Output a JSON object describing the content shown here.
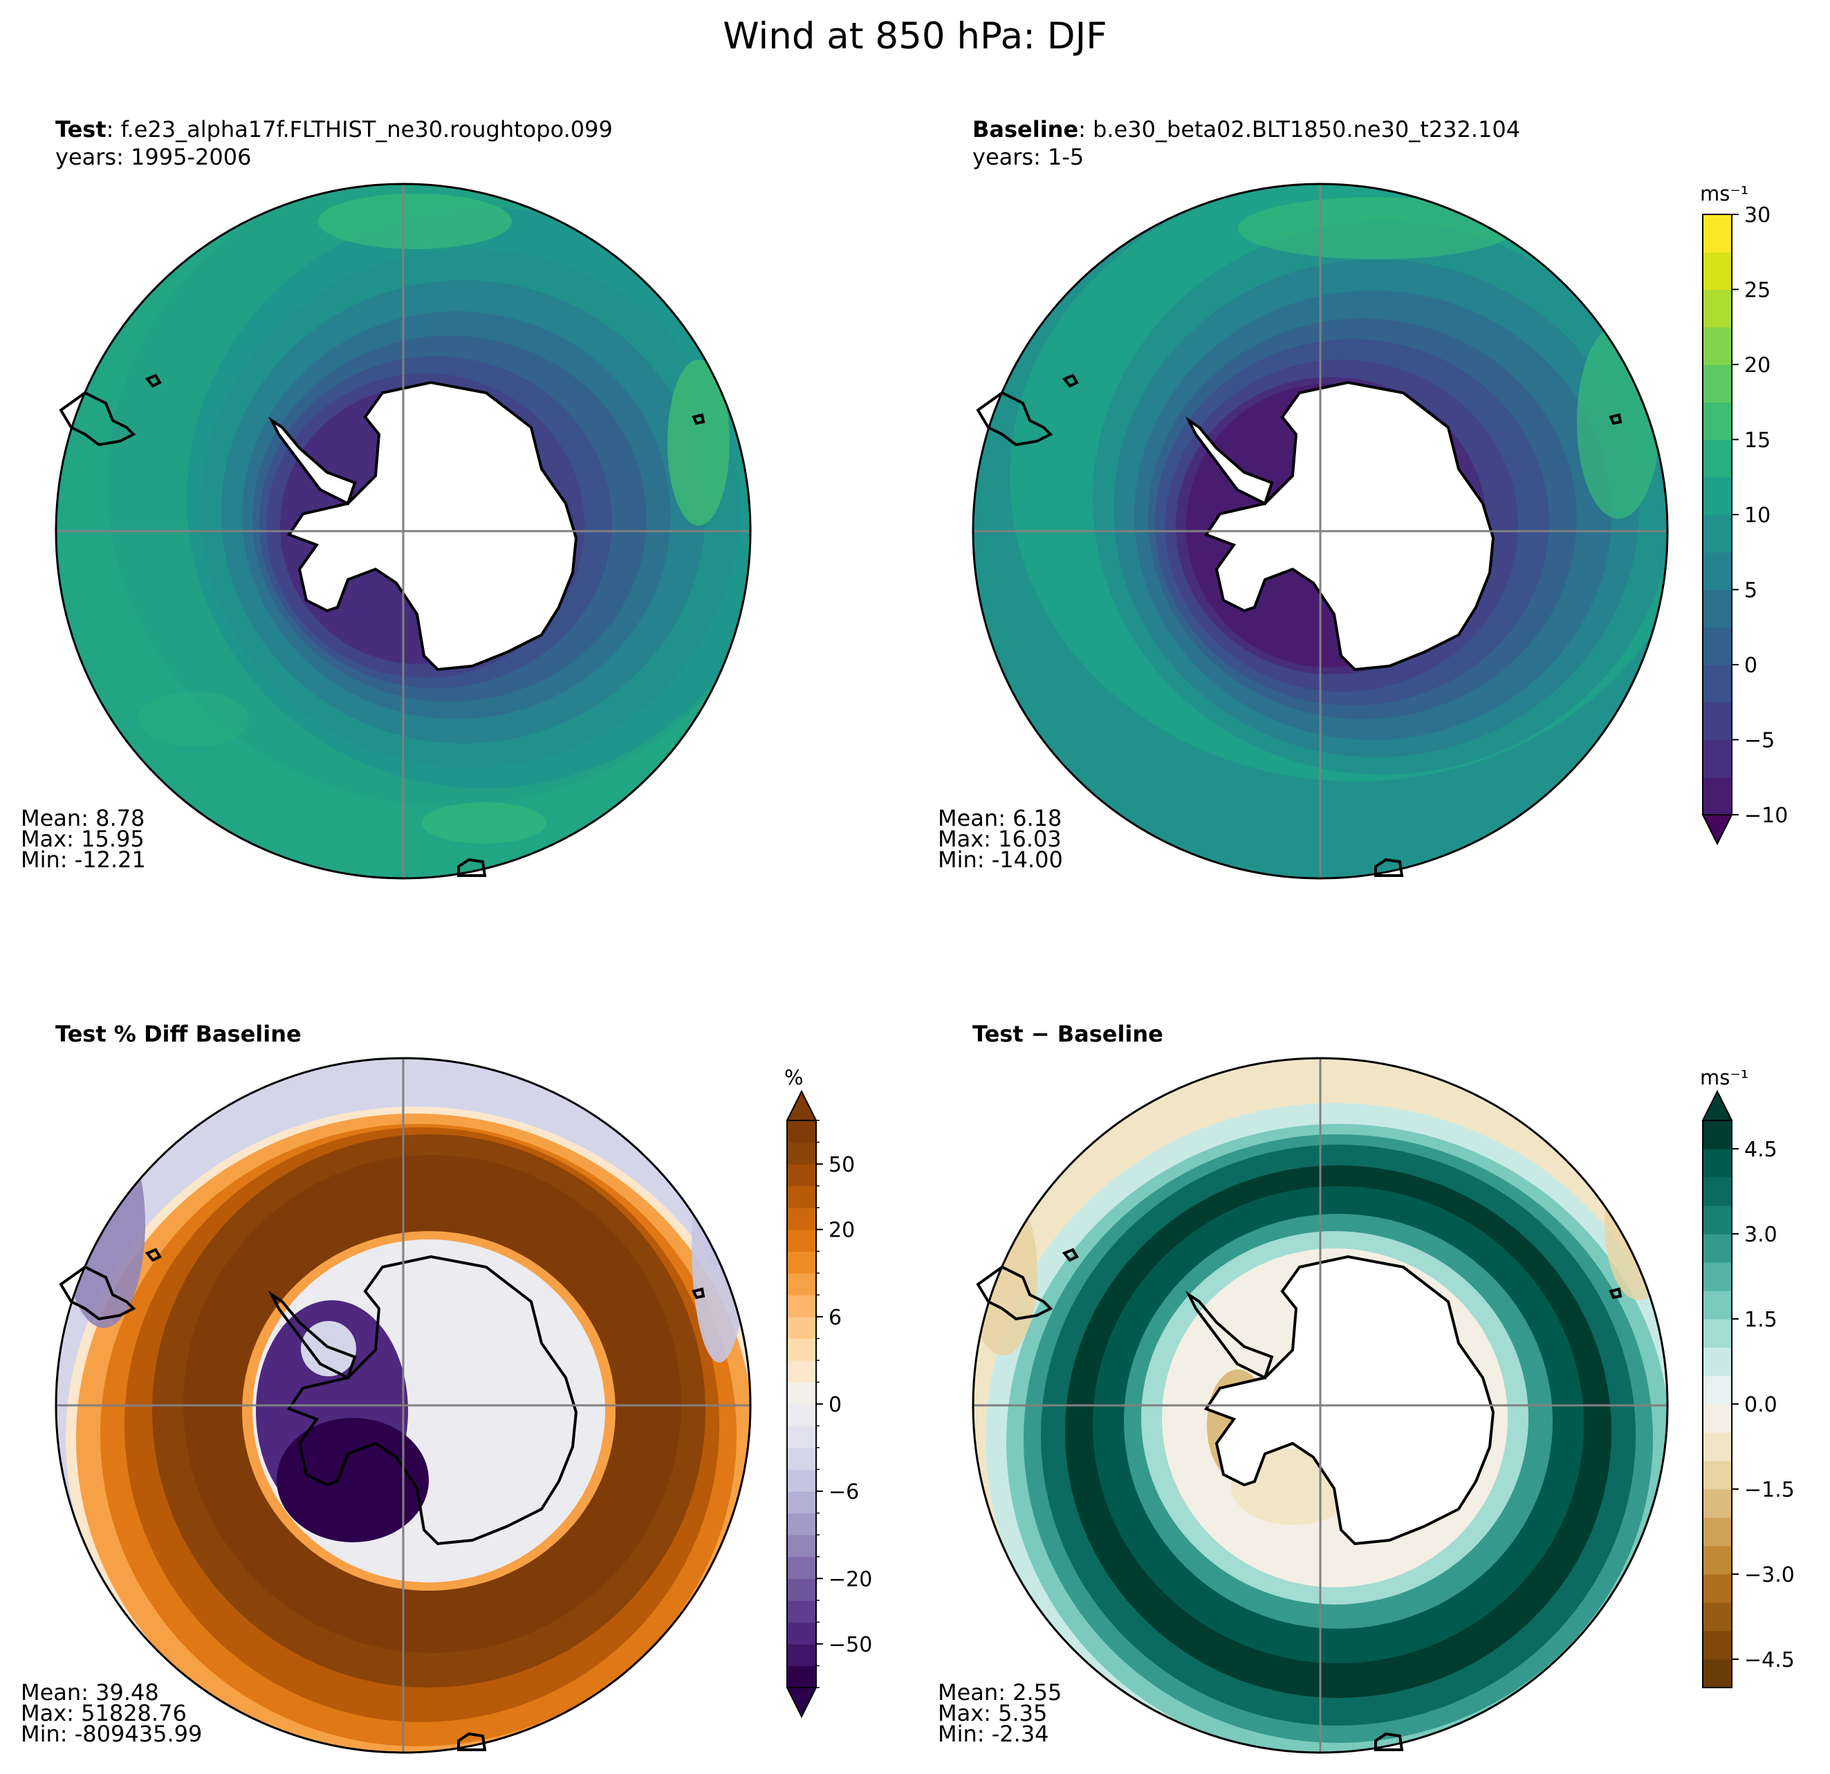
{
  "suptitle": "Wind at 850 hPa: DJF",
  "panels": {
    "test": {
      "label": "Test",
      "case_name": "f.e23_alpha17f.FLTHIST_ne30.roughtopo.099",
      "years": "years: 1995-2006",
      "stats": {
        "mean": "Mean:  8.78",
        "max": "Max: 15.95",
        "min": "Min: -12.21"
      }
    },
    "baseline": {
      "label": "Baseline",
      "case_name": "b.e30_beta02.BLT1850.ne30_t232.104",
      "years": "years: 1-5",
      "stats": {
        "mean": "Mean:  6.18",
        "max": "Max: 16.03",
        "min": "Min: -14.00"
      }
    },
    "pct_diff": {
      "label": "Test % Diff Baseline",
      "stats": {
        "mean": "Mean: 39.48",
        "max": "Max: 51828.76",
        "min": "Min: -809435.99"
      }
    },
    "abs_diff": {
      "label": "Test − Baseline",
      "stats": {
        "mean": "Mean:  2.55",
        "max": "Max:  5.35",
        "min": "Min: -2.34"
      }
    }
  },
  "colorbars": {
    "main": {
      "units": "ms⁻¹",
      "extend": "min",
      "min": -10,
      "max": 30,
      "step": 2.5,
      "ticks": [
        -10,
        -5,
        0,
        5,
        10,
        15,
        20,
        25,
        30
      ],
      "tick_labels": [
        "−10",
        "−5",
        "0",
        "5",
        "10",
        "15",
        "20",
        "25",
        "30"
      ],
      "colors": [
        "#46085c",
        "#481d6f",
        "#47307f",
        "#424086",
        "#3b528b",
        "#33628d",
        "#2c718e",
        "#26818e",
        "#21918c",
        "#1fa088",
        "#28ae80",
        "#3fbc73",
        "#5ec962",
        "#84d44b",
        "#addc30",
        "#d8e219",
        "#fde725"
      ]
    },
    "pct": {
      "units": "%",
      "extend": "both",
      "levels": [
        -100,
        -75,
        -50,
        -40,
        -30,
        -20,
        -15,
        -10,
        -8,
        -6,
        -4,
        -2,
        -1,
        0,
        1,
        2,
        4,
        6,
        8,
        10,
        15,
        20,
        30,
        40,
        50,
        75,
        100
      ],
      "ticks": [
        -50,
        -20,
        -6,
        0,
        6,
        20,
        50
      ],
      "tick_labels": [
        "−50",
        "−20",
        "−6",
        "0",
        "6",
        "20",
        "50"
      ],
      "colors": [
        "#2d004b",
        "#3f1568",
        "#4f2880",
        "#5f3e8f",
        "#6f569c",
        "#806da9",
        "#9185b8",
        "#a39bc7",
        "#b4b0d5",
        "#c5c5e1",
        "#d5d5ea",
        "#e2e1ef",
        "#ebebf0",
        "#f3f0ea",
        "#fbe7cc",
        "#fcdcae",
        "#fdca8c",
        "#fcb56a",
        "#f7a146",
        "#ee8b26",
        "#e07815",
        "#cd680c",
        "#b85a08",
        "#a24c07",
        "#8a4309",
        "#7f3b08"
      ]
    },
    "diff": {
      "units": "ms⁻¹",
      "extend": "max",
      "min": -5,
      "max": 5,
      "step": 0.5,
      "ticks": [
        -4.5,
        -3.0,
        -1.5,
        0.0,
        1.5,
        3.0,
        4.5
      ],
      "tick_labels": [
        "−4.5",
        "−3.0",
        "−1.5",
        "0.0",
        "1.5",
        "3.0",
        "4.5"
      ],
      "colors": [
        "#543005",
        "#6a3c07",
        "#80490b",
        "#975b13",
        "#ae6e1e",
        "#c18838",
        "#cfa25a",
        "#dbbb7e",
        "#e8d3a3",
        "#f1e5c6",
        "#f4efe4",
        "#e7f2f0",
        "#c9eae4",
        "#a3dcd3",
        "#7bcabe",
        "#55b3a6",
        "#36998d",
        "#1b8175",
        "#0b6b60",
        "#025a4f",
        "#003c30"
      ]
    }
  }
}
